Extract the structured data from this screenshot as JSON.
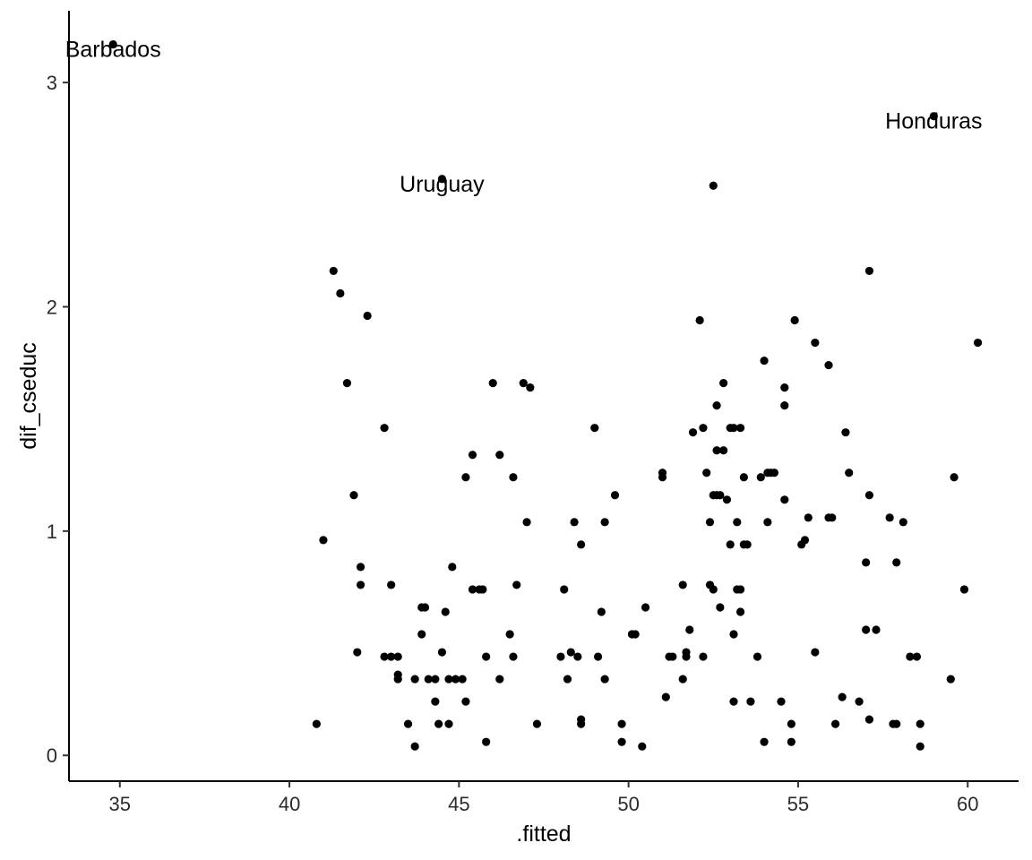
{
  "chart_data": {
    "type": "scatter",
    "title": "",
    "xlabel": ".fitted",
    "ylabel": "dif_cseduc",
    "xlim": [
      33.5,
      61.5
    ],
    "ylim": [
      -0.115,
      3.32
    ],
    "xticks": [
      35,
      40,
      45,
      50,
      55,
      60
    ],
    "yticks": [
      0,
      1,
      2,
      3
    ],
    "grid": false,
    "point_color": "#000000",
    "labels": [
      {
        "text": "Barbados",
        "x": 34.8,
        "y": 3.15
      },
      {
        "text": "Uruguay",
        "x": 44.5,
        "y": 2.55
      },
      {
        "text": "Honduras",
        "x": 59.0,
        "y": 2.83
      }
    ],
    "points": [
      [
        34.8,
        3.17
      ],
      [
        44.5,
        2.57
      ],
      [
        59.0,
        2.85
      ],
      [
        52.5,
        2.54
      ],
      [
        41.3,
        2.16
      ],
      [
        41.5,
        2.06
      ],
      [
        42.3,
        1.96
      ],
      [
        41.7,
        1.66
      ],
      [
        42.8,
        1.46
      ],
      [
        41.0,
        0.96
      ],
      [
        41.9,
        1.16
      ],
      [
        42.1,
        0.84
      ],
      [
        42.1,
        0.76
      ],
      [
        42.0,
        0.46
      ],
      [
        40.8,
        0.14
      ],
      [
        43.0,
        0.76
      ],
      [
        42.8,
        0.44
      ],
      [
        43.0,
        0.44
      ],
      [
        43.2,
        0.44
      ],
      [
        43.2,
        0.36
      ],
      [
        43.2,
        0.34
      ],
      [
        43.5,
        0.14
      ],
      [
        43.7,
        0.34
      ],
      [
        43.7,
        0.04
      ],
      [
        43.9,
        0.66
      ],
      [
        43.9,
        0.54
      ],
      [
        44.0,
        0.66
      ],
      [
        44.1,
        0.34
      ],
      [
        44.3,
        0.34
      ],
      [
        44.3,
        0.24
      ],
      [
        44.4,
        0.14
      ],
      [
        44.5,
        0.46
      ],
      [
        44.6,
        0.64
      ],
      [
        44.7,
        0.14
      ],
      [
        44.7,
        0.34
      ],
      [
        44.8,
        0.84
      ],
      [
        44.9,
        0.34
      ],
      [
        45.1,
        0.34
      ],
      [
        45.2,
        0.24
      ],
      [
        45.2,
        1.24
      ],
      [
        45.4,
        1.34
      ],
      [
        45.4,
        0.74
      ],
      [
        45.6,
        0.74
      ],
      [
        45.7,
        0.74
      ],
      [
        45.8,
        0.44
      ],
      [
        45.8,
        0.06
      ],
      [
        46.0,
        1.66
      ],
      [
        46.2,
        1.34
      ],
      [
        46.2,
        0.34
      ],
      [
        46.5,
        0.54
      ],
      [
        46.6,
        0.44
      ],
      [
        46.6,
        1.24
      ],
      [
        46.7,
        0.76
      ],
      [
        46.9,
        1.66
      ],
      [
        47.0,
        1.04
      ],
      [
        47.1,
        1.64
      ],
      [
        47.3,
        0.14
      ],
      [
        48.0,
        0.44
      ],
      [
        48.1,
        0.74
      ],
      [
        48.2,
        0.34
      ],
      [
        48.3,
        0.46
      ],
      [
        48.4,
        1.04
      ],
      [
        48.5,
        0.44
      ],
      [
        48.6,
        0.16
      ],
      [
        48.6,
        0.14
      ],
      [
        48.6,
        0.94
      ],
      [
        49.0,
        1.46
      ],
      [
        49.1,
        0.44
      ],
      [
        49.2,
        0.64
      ],
      [
        49.3,
        1.04
      ],
      [
        49.3,
        0.34
      ],
      [
        49.6,
        1.16
      ],
      [
        49.8,
        0.14
      ],
      [
        49.8,
        0.06
      ],
      [
        50.1,
        0.54
      ],
      [
        50.2,
        0.54
      ],
      [
        50.4,
        0.04
      ],
      [
        50.5,
        0.66
      ],
      [
        51.0,
        1.26
      ],
      [
        51.0,
        1.24
      ],
      [
        51.1,
        0.26
      ],
      [
        51.2,
        0.44
      ],
      [
        51.3,
        0.44
      ],
      [
        51.6,
        0.76
      ],
      [
        51.6,
        0.34
      ],
      [
        51.7,
        0.44
      ],
      [
        51.7,
        0.46
      ],
      [
        51.8,
        0.56
      ],
      [
        51.9,
        1.44
      ],
      [
        52.1,
        1.94
      ],
      [
        52.2,
        1.46
      ],
      [
        52.2,
        0.44
      ],
      [
        52.3,
        1.26
      ],
      [
        52.4,
        1.04
      ],
      [
        52.4,
        0.76
      ],
      [
        52.5,
        0.74
      ],
      [
        52.5,
        1.16
      ],
      [
        52.6,
        1.36
      ],
      [
        52.6,
        1.56
      ],
      [
        52.6,
        1.16
      ],
      [
        52.7,
        0.66
      ],
      [
        52.7,
        1.16
      ],
      [
        52.8,
        1.66
      ],
      [
        52.8,
        1.36
      ],
      [
        52.9,
        1.14
      ],
      [
        53.0,
        1.46
      ],
      [
        53.0,
        0.94
      ],
      [
        53.1,
        1.46
      ],
      [
        53.1,
        0.24
      ],
      [
        53.1,
        0.54
      ],
      [
        53.2,
        1.04
      ],
      [
        53.2,
        0.74
      ],
      [
        53.3,
        0.74
      ],
      [
        53.3,
        0.64
      ],
      [
        53.3,
        1.46
      ],
      [
        53.4,
        0.94
      ],
      [
        53.4,
        1.24
      ],
      [
        53.5,
        0.94
      ],
      [
        53.6,
        0.24
      ],
      [
        53.8,
        0.44
      ],
      [
        53.9,
        1.24
      ],
      [
        54.0,
        0.06
      ],
      [
        54.0,
        1.76
      ],
      [
        54.1,
        1.04
      ],
      [
        54.1,
        1.26
      ],
      [
        54.2,
        1.26
      ],
      [
        54.3,
        1.26
      ],
      [
        54.5,
        0.24
      ],
      [
        54.6,
        1.64
      ],
      [
        54.6,
        1.56
      ],
      [
        54.6,
        1.14
      ],
      [
        54.8,
        0.14
      ],
      [
        54.8,
        0.06
      ],
      [
        54.9,
        1.94
      ],
      [
        55.1,
        0.94
      ],
      [
        55.2,
        0.96
      ],
      [
        55.3,
        1.06
      ],
      [
        55.5,
        1.84
      ],
      [
        55.5,
        0.46
      ],
      [
        55.9,
        1.74
      ],
      [
        55.9,
        1.06
      ],
      [
        56.0,
        1.06
      ],
      [
        56.1,
        0.14
      ],
      [
        56.3,
        0.26
      ],
      [
        56.4,
        1.44
      ],
      [
        56.5,
        1.26
      ],
      [
        56.8,
        0.24
      ],
      [
        57.0,
        0.56
      ],
      [
        57.0,
        0.86
      ],
      [
        57.1,
        0.16
      ],
      [
        57.1,
        2.16
      ],
      [
        57.1,
        1.16
      ],
      [
        57.3,
        0.56
      ],
      [
        57.7,
        1.06
      ],
      [
        57.8,
        0.14
      ],
      [
        57.9,
        0.86
      ],
      [
        57.9,
        0.14
      ],
      [
        58.1,
        1.04
      ],
      [
        58.3,
        0.44
      ],
      [
        58.5,
        0.44
      ],
      [
        58.6,
        0.14
      ],
      [
        58.6,
        0.04
      ],
      [
        59.5,
        0.34
      ],
      [
        59.6,
        1.24
      ],
      [
        59.9,
        0.74
      ],
      [
        60.3,
        1.84
      ]
    ]
  }
}
